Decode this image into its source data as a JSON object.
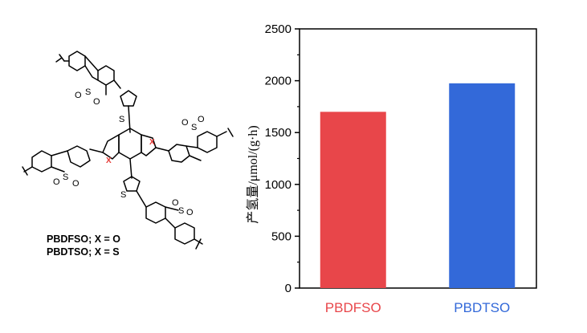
{
  "structure": {
    "atom_S": "S",
    "atom_O": "O",
    "atom_X": "X",
    "caption_lines": [
      "PBDFSO; X = O",
      "PBDTSO; X = S"
    ]
  },
  "chart_data": {
    "type": "bar",
    "categories": [
      "PBDFSO",
      "PBDTSO"
    ],
    "values": [
      1700,
      1975
    ],
    "bar_colors": [
      "#e8464a",
      "#3369d9"
    ],
    "label_colors": [
      "#e8464a",
      "#3369d9"
    ],
    "xlabel": "",
    "ylabel": "产氢量/μmol/(g·h)",
    "ylim": [
      0,
      2500
    ],
    "yticks": [
      0,
      500,
      1000,
      1500,
      2000,
      2500
    ],
    "grid": false,
    "legend": "none"
  }
}
